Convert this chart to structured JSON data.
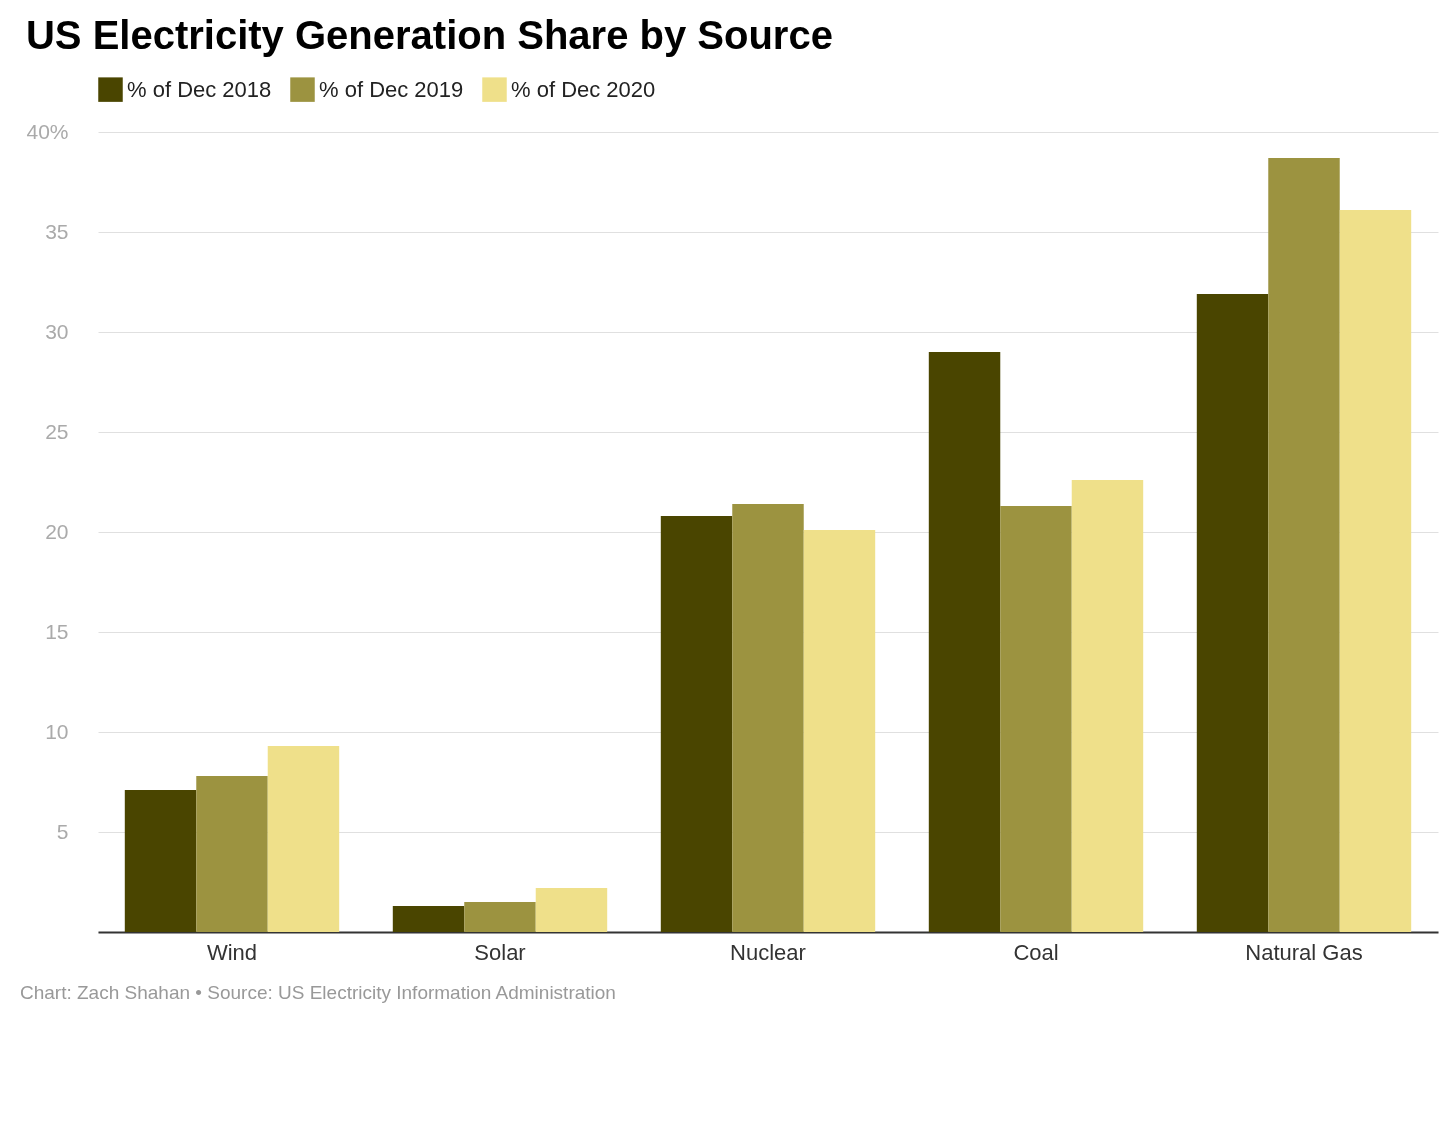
{
  "chart_data": {
    "type": "bar",
    "title": "US Electricity Generation Share by Source",
    "categories": [
      "Wind",
      "Solar",
      "Nuclear",
      "Coal",
      "Natural Gas"
    ],
    "series": [
      {
        "name": "% of Dec 2018",
        "color": "#4a4500",
        "values": [
          7.1,
          1.3,
          20.8,
          29.0,
          31.9
        ]
      },
      {
        "name": "% of Dec 2019",
        "color": "#9c9340",
        "values": [
          7.8,
          1.5,
          21.4,
          21.3,
          38.7
        ]
      },
      {
        "name": "% of Dec 2020",
        "color": "#efe08a",
        "values": [
          9.3,
          2.2,
          20.1,
          22.6,
          36.1
        ]
      }
    ],
    "ylim": [
      0,
      40
    ],
    "yticks": [
      {
        "value": 0,
        "label": null
      },
      5,
      10,
      15,
      20,
      25,
      30,
      35,
      {
        "value": 40,
        "label": "40%"
      }
    ],
    "grid": "y",
    "legend": "top left",
    "annotations": [
      "Chart: Zach Shahan • Source: US Electricity Information Administration"
    ]
  }
}
